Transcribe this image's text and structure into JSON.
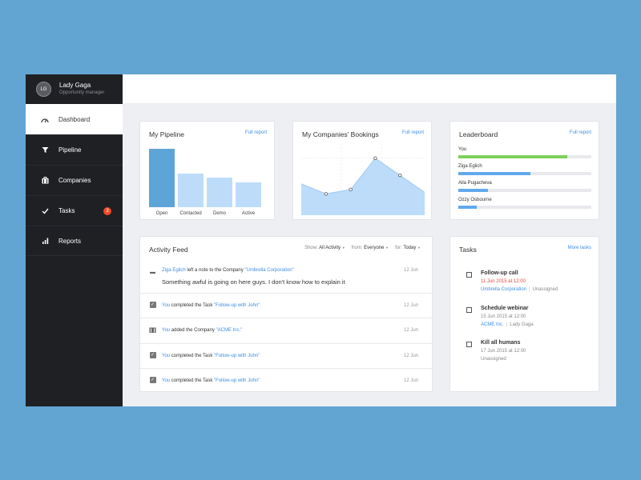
{
  "user": {
    "initials": "LG",
    "name": "Lady Gaga",
    "role": "Opportunity manager"
  },
  "nav": [
    {
      "label": "Dashboard",
      "icon": "speedometer-icon",
      "active": true
    },
    {
      "label": "Pipeline",
      "icon": "filter-icon"
    },
    {
      "label": "Companies",
      "icon": "building-icon"
    },
    {
      "label": "Tasks",
      "icon": "checkmark-icon",
      "badge": "3"
    },
    {
      "label": "Reports",
      "icon": "bar-chart-icon"
    }
  ],
  "pipeline": {
    "title": "My Pipeline",
    "link": "Full report",
    "chart_data": {
      "type": "bar",
      "categories": [
        "Open",
        "Contacted",
        "Demo",
        "Active"
      ],
      "values": [
        100,
        58,
        50,
        42
      ]
    }
  },
  "bookings": {
    "title": "My Companies' Bookings",
    "link": "Full report",
    "chart_data": {
      "type": "area",
      "values": [
        22,
        15,
        18,
        40,
        28,
        16
      ]
    }
  },
  "leaderboard": {
    "title": "Leaderboard",
    "link": "Full report",
    "rows": [
      {
        "name": "You",
        "value": 0.82,
        "color": "#7ed05a"
      },
      {
        "name": "Ziga Eglich",
        "value": 0.54,
        "color": "#62a9ee"
      },
      {
        "name": "Alla Pugacheva",
        "value": 0.22,
        "color": "#62a9ee"
      },
      {
        "name": "Ozzy Osbourne",
        "value": 0.14,
        "color": "#62a9ee"
      }
    ]
  },
  "activity": {
    "title": "Activity Feed",
    "filters": [
      {
        "label": "Show:",
        "value": "All Activity"
      },
      {
        "label": "from:",
        "value": "Everyone"
      },
      {
        "label": "for:",
        "value": "Today"
      }
    ],
    "items": [
      {
        "icon": "note-icon",
        "actor": "Ziga Eglich",
        "text": " left a note to the Company ",
        "target": "\"Umbrella Corporation\"",
        "sub": "Something awful is going on here guys. I don't know how to explain it",
        "date": "12 Jun"
      },
      {
        "icon": "checkbox-icon",
        "actor": "You",
        "text": " completed the Task ",
        "target": "\"Follow-up with John\"",
        "date": "12 Jun"
      },
      {
        "icon": "building-icon",
        "actor": "You",
        "text": " added the Company ",
        "target": "\"ACME Inc.\"",
        "date": "12 Jun"
      },
      {
        "icon": "checkbox-icon",
        "actor": "You",
        "text": " completed the Task ",
        "target": "\"Follow-up with John\"",
        "date": "12 Jun"
      },
      {
        "icon": "checkbox-icon",
        "actor": "You",
        "text": " completed the Task ",
        "target": "\"Follow-up with John\"",
        "date": "12 Jun"
      }
    ]
  },
  "tasks": {
    "title": "Tasks",
    "link": "More tasks",
    "items": [
      {
        "title": "Follow-up call",
        "date": "11 Jun 2015 at 12:00",
        "overdue": true,
        "company": "Umbrella Corporation",
        "assignee": "Unassigned"
      },
      {
        "title": "Schedule webinar",
        "date": "15 Jun 2015 at 12:00",
        "company": "ACME Inc.",
        "assignee": "Lady Gaga"
      },
      {
        "title": "Kill all humans",
        "date": "17 Jun 2015 at 12:00",
        "assignee": "Unassigned"
      }
    ]
  },
  "colors": {
    "sidebar": "#1f2024",
    "accent": "#3a8ee6",
    "badge": "#f04a24",
    "background": "#62a5d3"
  }
}
